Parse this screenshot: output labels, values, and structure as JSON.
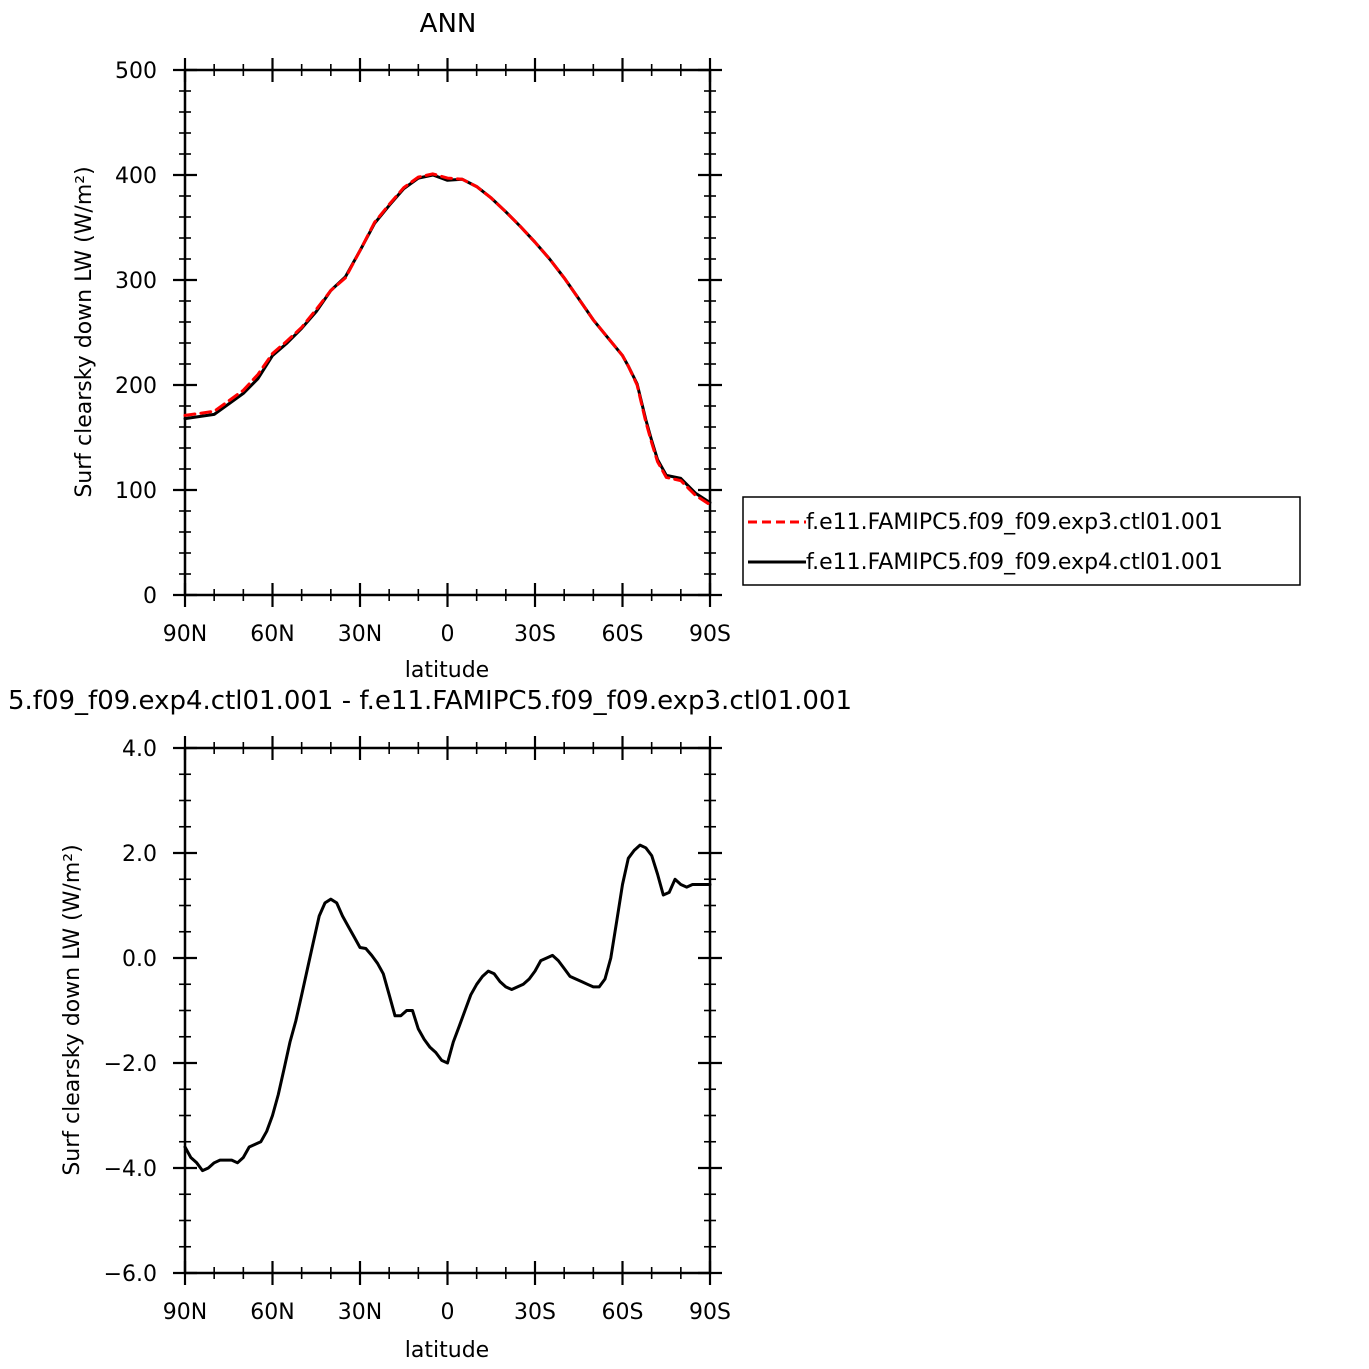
{
  "chart_data": [
    {
      "type": "line",
      "title": "ANN",
      "xlabel": "latitude",
      "ylabel": "Surf clearsky down LW (W/m²)",
      "xlim": [
        90,
        -90
      ],
      "ylim": [
        0,
        500
      ],
      "xticks": [
        90,
        60,
        30,
        0,
        -30,
        -60,
        -90
      ],
      "xtick_labels": [
        "90N",
        "60N",
        "30N",
        "0",
        "30S",
        "60S",
        "90S"
      ],
      "yticks": [
        0,
        100,
        200,
        300,
        400,
        500
      ],
      "ytick_labels": [
        "0",
        "100",
        "200",
        "300",
        "400",
        "500"
      ],
      "legend_position": "right",
      "x": [
        90,
        85,
        80,
        75,
        70,
        65,
        60,
        55,
        50,
        45,
        40,
        35,
        30,
        25,
        20,
        15,
        10,
        5,
        0,
        -5,
        -10,
        -15,
        -20,
        -25,
        -30,
        -35,
        -40,
        -45,
        -50,
        -55,
        -60,
        -62,
        -65,
        -68,
        -70,
        -72,
        -75,
        -80,
        -85,
        -90
      ],
      "series": [
        {
          "name": "f.e11.FAMIPC5.f09_f09.exp3.ctl01.001",
          "color": "#ff0000",
          "dash": "dashed",
          "values": [
            171,
            173,
            175,
            185,
            195,
            210,
            230,
            242,
            255,
            272,
            290,
            302,
            328,
            355,
            372,
            388,
            398,
            401,
            397,
            396,
            389,
            378,
            365,
            351,
            336,
            320,
            302,
            282,
            262,
            245,
            228,
            218,
            200,
            165,
            145,
            127,
            112,
            109,
            95,
            86
          ]
        },
        {
          "name": "f.e11.FAMIPC5.f09_f09.exp4.ctl01.001",
          "color": "#000000",
          "dash": "solid",
          "values": [
            168,
            170,
            172,
            182,
            192,
            206,
            228,
            240,
            254,
            270,
            290,
            303,
            328,
            354,
            371,
            387,
            397,
            400,
            395,
            396,
            389,
            378,
            365,
            351,
            336,
            320,
            302,
            282,
            262,
            245,
            228,
            218,
            201,
            167,
            147,
            129,
            114,
            111,
            97,
            88
          ]
        }
      ]
    },
    {
      "type": "line",
      "title": "5.f09_f09.exp4.ctl01.001  -  f.e11.FAMIPC5.f09_f09.exp3.ctl01.001",
      "xlabel": "latitude",
      "ylabel": "Surf clearsky down LW (W/m²)",
      "xlim": [
        90,
        -90
      ],
      "ylim": [
        -6.0,
        4.0
      ],
      "xticks": [
        90,
        60,
        30,
        0,
        -30,
        -60,
        -90
      ],
      "xtick_labels": [
        "90N",
        "60N",
        "30N",
        "0",
        "30S",
        "60S",
        "90S"
      ],
      "yticks": [
        -6,
        -4,
        -2,
        0,
        2,
        4
      ],
      "ytick_labels": [
        "−6.0",
        "−4.0",
        "−2.0",
        "0.0",
        "2.0",
        "4.0"
      ],
      "x": [
        90,
        88,
        86,
        84,
        82,
        80,
        78,
        76,
        74,
        72,
        70,
        68,
        66,
        64,
        62,
        60,
        58,
        56,
        54,
        52,
        50,
        48,
        46,
        44,
        42,
        40,
        38,
        36,
        34,
        32,
        30,
        28,
        26,
        24,
        22,
        20,
        18,
        16,
        14,
        12,
        10,
        8,
        6,
        4,
        2,
        0,
        -2,
        -4,
        -6,
        -8,
        -10,
        -12,
        -14,
        -16,
        -18,
        -20,
        -22,
        -24,
        -26,
        -28,
        -30,
        -32,
        -34,
        -36,
        -38,
        -40,
        -42,
        -44,
        -46,
        -48,
        -50,
        -52,
        -54,
        -56,
        -58,
        -60,
        -62,
        -64,
        -66,
        -68,
        -70,
        -72,
        -74,
        -76,
        -78,
        -80,
        -82,
        -84,
        -86,
        -88,
        -90
      ],
      "series": [
        {
          "name": "",
          "color": "#000000",
          "dash": "solid",
          "values": [
            -3.6,
            -3.8,
            -3.9,
            -4.05,
            -4.0,
            -3.9,
            -3.85,
            -3.85,
            -3.85,
            -3.9,
            -3.8,
            -3.6,
            -3.55,
            -3.5,
            -3.3,
            -3.0,
            -2.6,
            -2.1,
            -1.6,
            -1.2,
            -0.7,
            -0.2,
            0.3,
            0.8,
            1.05,
            1.12,
            1.05,
            0.8,
            0.6,
            0.4,
            0.2,
            0.18,
            0.05,
            -0.1,
            -0.3,
            -0.7,
            -1.1,
            -1.1,
            -1.0,
            -1.0,
            -1.35,
            -1.55,
            -1.7,
            -1.8,
            -1.95,
            -2.0,
            -1.6,
            -1.3,
            -1.0,
            -0.7,
            -0.5,
            -0.35,
            -0.25,
            -0.3,
            -0.45,
            -0.55,
            -0.6,
            -0.55,
            -0.5,
            -0.4,
            -0.25,
            -0.05,
            0.0,
            0.05,
            -0.05,
            -0.2,
            -0.35,
            -0.4,
            -0.45,
            -0.5,
            -0.55,
            -0.55,
            -0.4,
            0.0,
            0.7,
            1.4,
            1.9,
            2.05,
            2.15,
            2.1,
            1.95,
            1.6,
            1.2,
            1.25,
            1.5,
            1.4,
            1.35,
            1.4,
            1.4,
            1.4,
            1.4
          ]
        }
      ]
    }
  ]
}
